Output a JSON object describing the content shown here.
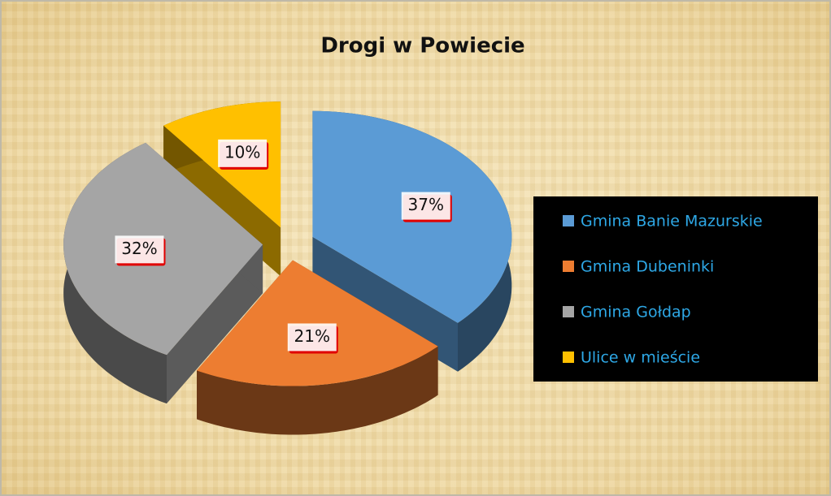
{
  "chart_data": {
    "type": "pie",
    "title": "Drogi w Powiecie",
    "categories": [
      "Gmina Banie Mazurskie",
      "Gmina Dubeninki",
      "Gmina Gołdap",
      "Ulice w mieście"
    ],
    "values": [
      37,
      21,
      32,
      10
    ],
    "value_labels": [
      "37%",
      "21%",
      "32%",
      "10%"
    ],
    "colors": [
      "#5b9bd5",
      "#ed7d31",
      "#a5a5a5",
      "#ffc000"
    ],
    "legend": "right"
  }
}
